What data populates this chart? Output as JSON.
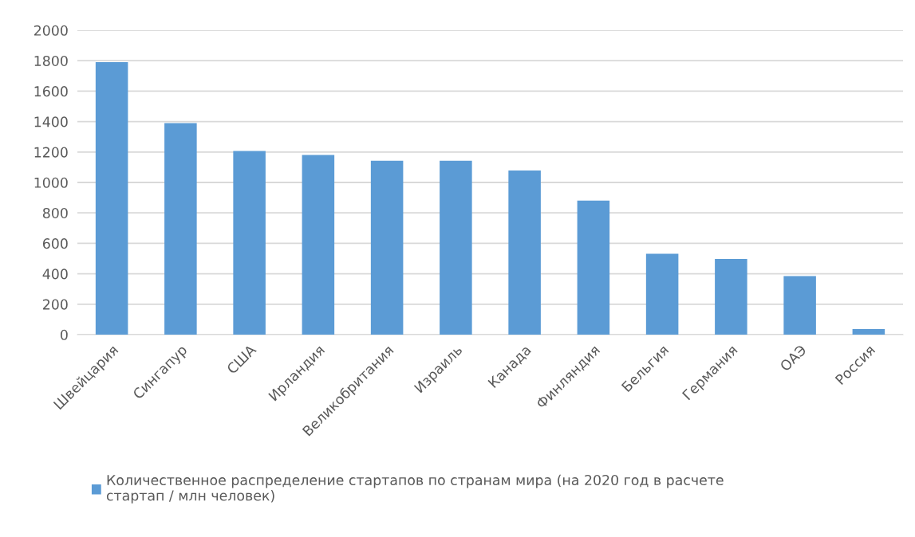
{
  "chart_data": {
    "type": "bar",
    "categories": [
      "Швейцария",
      "Сингапур",
      "США",
      "Ирландия",
      "Великобритания",
      "Израиль",
      "Канада",
      "Финляндия",
      "Бельгия",
      "Германия",
      "ОАЭ",
      "Россия"
    ],
    "series": [
      {
        "name": "Количественное распределение стартапов по странам мира (на 2020 год в расчете стартап / млн человек)",
        "color": "#5b9bd5",
        "values": [
          1790,
          1390,
          1207,
          1181,
          1143,
          1143,
          1078,
          881,
          531,
          498,
          385,
          36
        ]
      }
    ],
    "ylim": [
      0,
      2000
    ],
    "yticks": [
      0,
      200,
      400,
      600,
      800,
      1000,
      1200,
      1400,
      1600,
      1800,
      2000
    ],
    "grid": "y",
    "legend": "bottom"
  }
}
